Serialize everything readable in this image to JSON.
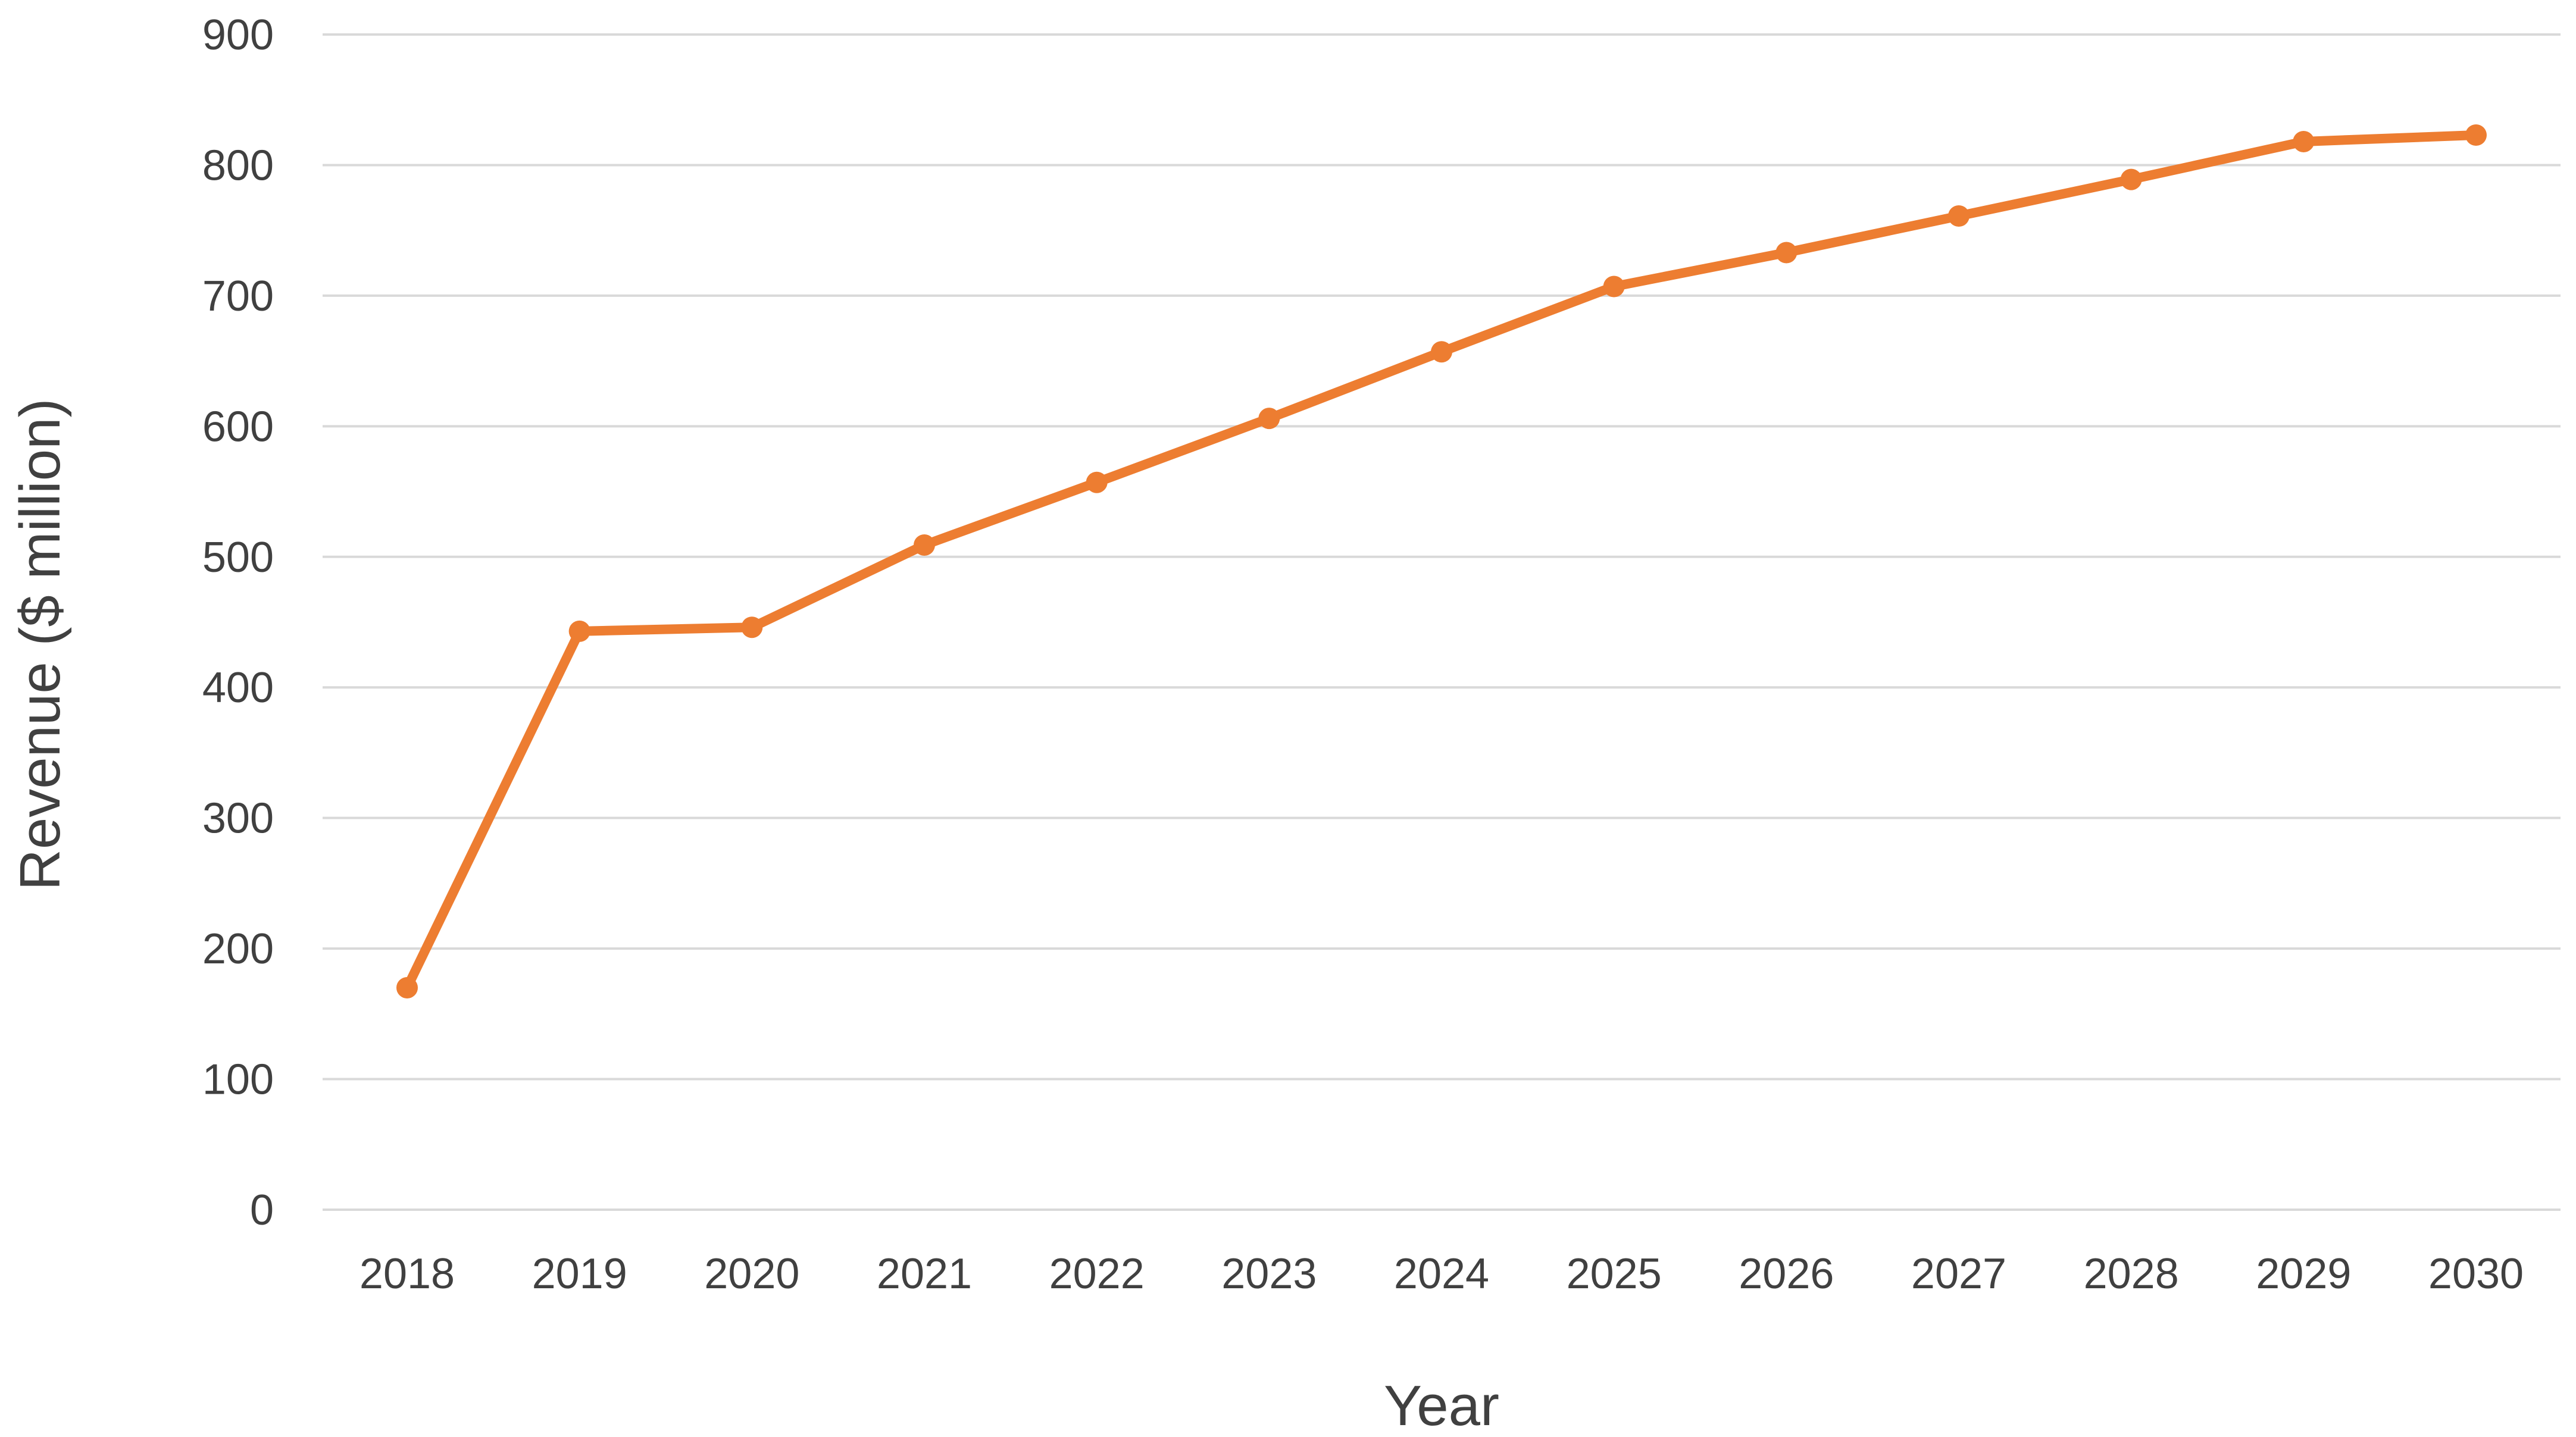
{
  "chart_data": {
    "type": "line",
    "title": "",
    "xlabel": "Year",
    "ylabel": "Revenue ($ million)",
    "x": [
      "2018",
      "2019",
      "2020",
      "2021",
      "2022",
      "2023",
      "2024",
      "2025",
      "2026",
      "2027",
      "2028",
      "2029",
      "2030"
    ],
    "series": [
      {
        "values": [
          170,
          443,
          446,
          509,
          557,
          606,
          657,
          707,
          733,
          761,
          789,
          818,
          823
        ],
        "color": "#ed7d31"
      }
    ],
    "ylim": [
      0,
      900
    ],
    "yticks": [
      "0",
      "100",
      "200",
      "300",
      "400",
      "500",
      "600",
      "700",
      "800",
      "900"
    ],
    "grid": "horizontal",
    "legend": "none",
    "markers": true
  }
}
